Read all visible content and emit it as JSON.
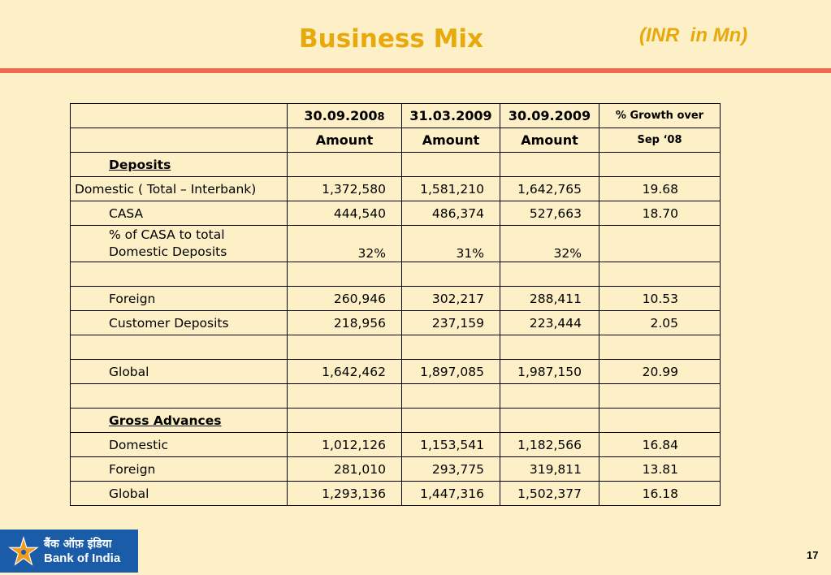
{
  "header": {
    "title": "Business Mix",
    "units": "(INR  in Mn)"
  },
  "table": {
    "header_row_1": [
      "",
      "30.09.2008",
      "31.03.2009",
      "30.09.2009",
      "% Growth over"
    ],
    "header_row_2": [
      "",
      "Amount",
      "Amount",
      "Amount",
      "Sep ‘08"
    ],
    "rows": [
      {
        "label": "Deposits",
        "section": true,
        "values": [
          "",
          "",
          "",
          ""
        ]
      },
      {
        "label": "Domestic ( Total – Interbank)",
        "values": [
          "1,372,580",
          "1,581,210",
          "1,642,765",
          "19.68"
        ]
      },
      {
        "label": "CASA",
        "values": [
          "444,540",
          "486,374",
          "527,663",
          "18.70"
        ]
      },
      {
        "label_line1": "% of CASA to total",
        "label_line2": "Domestic Deposits",
        "values": [
          "32%",
          "31%",
          "32%",
          ""
        ]
      },
      {
        "label": "",
        "values": [
          "",
          "",
          "",
          ""
        ]
      },
      {
        "label": "Foreign",
        "values": [
          "260,946",
          "302,217",
          "288,411",
          "10.53"
        ]
      },
      {
        "label": "Customer Deposits",
        "values": [
          "218,956",
          "237,159",
          "223,444",
          "2.05"
        ]
      },
      {
        "label": "",
        "values": [
          "",
          "",
          "",
          ""
        ]
      },
      {
        "label": "Global",
        "values": [
          "1,642,462",
          "1,897,085",
          "1,987,150",
          "20.99"
        ]
      },
      {
        "label": "",
        "values": [
          "",
          "",
          "",
          ""
        ]
      },
      {
        "label": "Gross Advances",
        "section": true,
        "values": [
          "",
          "",
          "",
          ""
        ]
      },
      {
        "label": "Domestic",
        "values": [
          "1,012,126",
          "1,153,541",
          "1,182,566",
          "16.84"
        ]
      },
      {
        "label": "Foreign",
        "values": [
          "281,010",
          "293,775",
          "319,811",
          "13.81"
        ]
      },
      {
        "label": "Global",
        "values": [
          "1,293,136",
          "1,447,316",
          "1,502,377",
          "16.18"
        ]
      }
    ]
  },
  "footer": {
    "bank_name_hindi": "बैंक ऑफ़ इंडिया",
    "bank_name": "Bank of India",
    "logo_icon": "star-logo-icon",
    "page_number": "17"
  },
  "colors": {
    "background": "#fdefc6",
    "title": "#e8a90d",
    "rule": "#ee6a50",
    "logo_bg": "#1a5ca8"
  }
}
